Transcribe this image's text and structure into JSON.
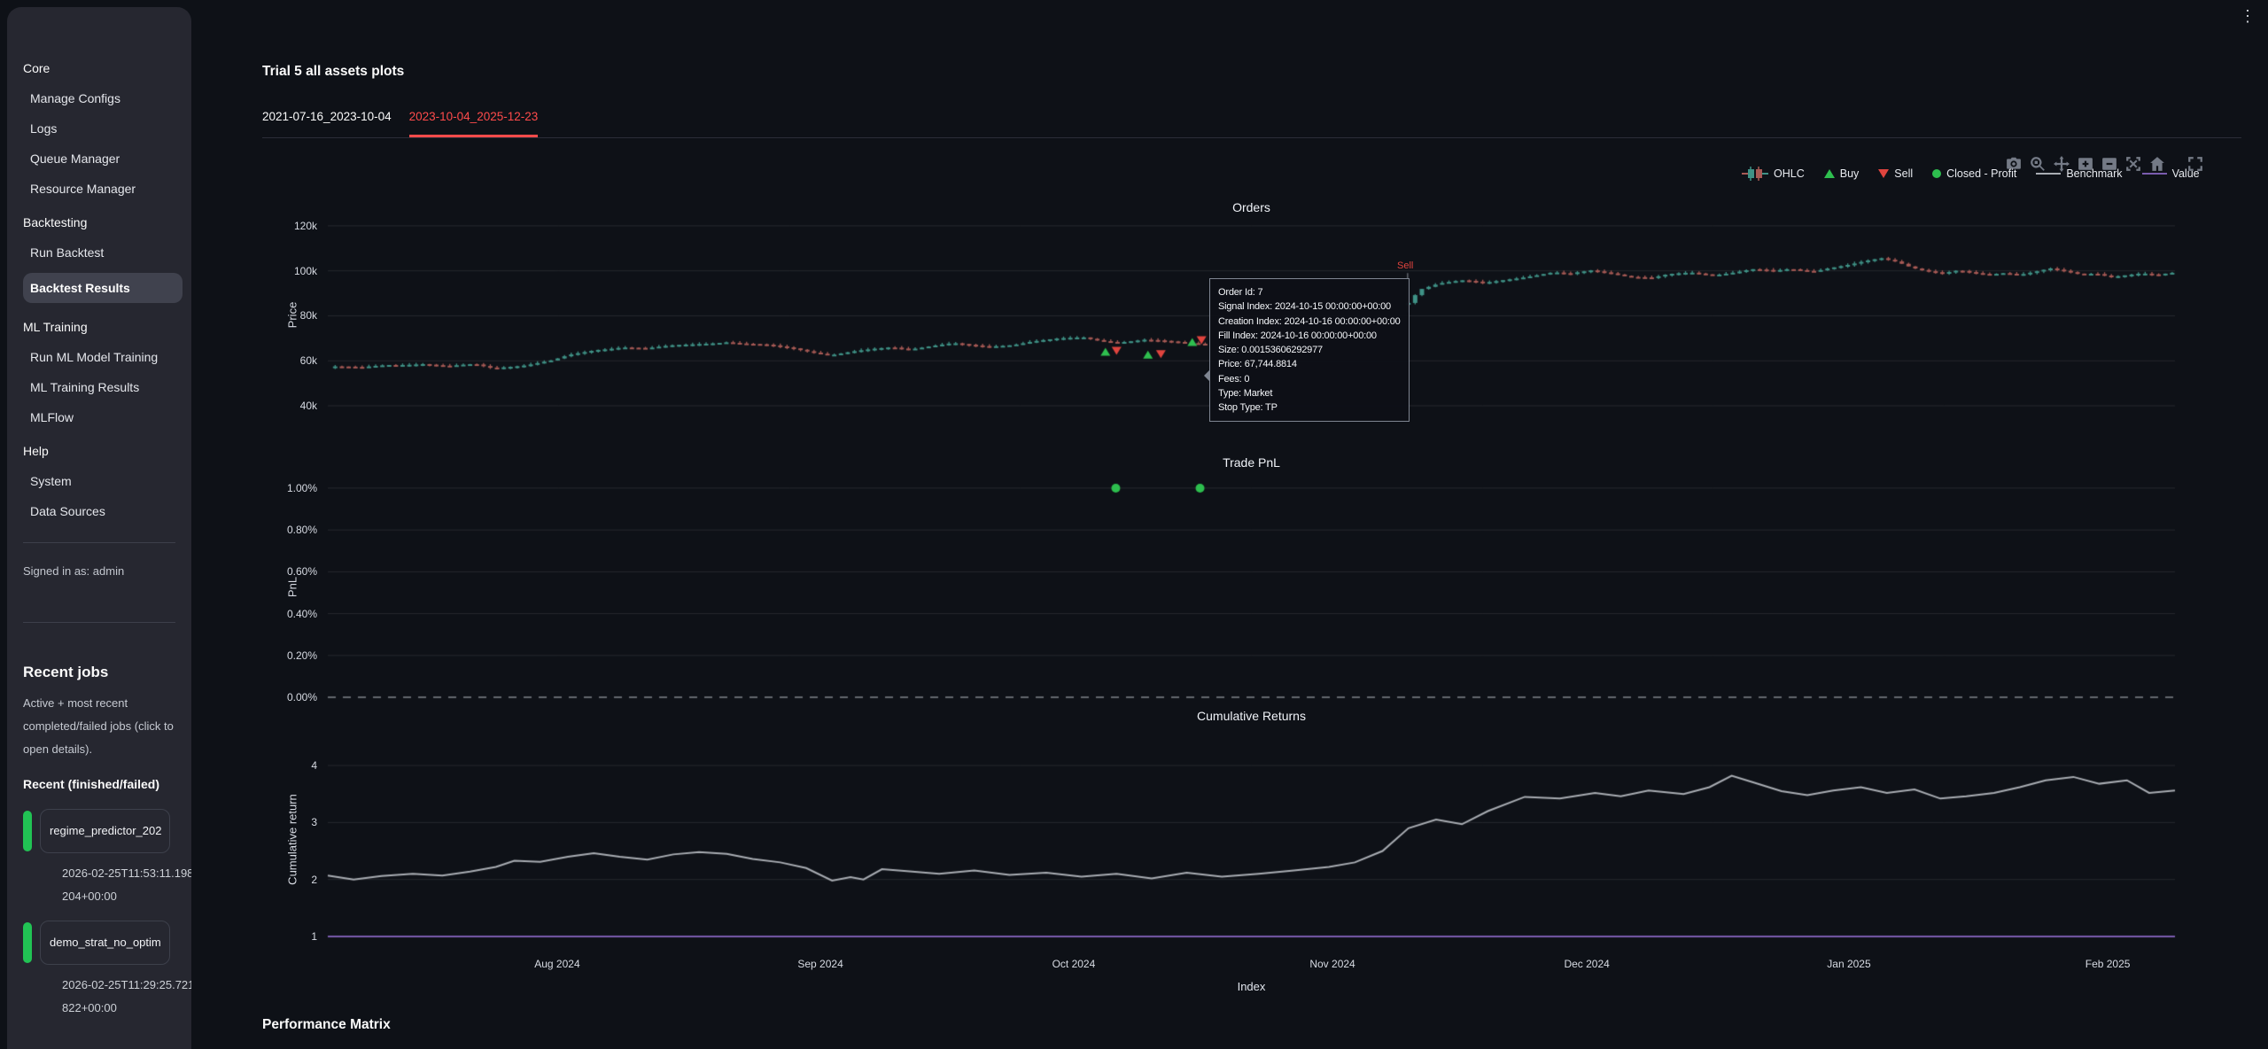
{
  "window": {
    "kebab": "⋮"
  },
  "sidebar": {
    "sections": [
      {
        "label": "Core",
        "items": [
          "Manage Configs",
          "Logs",
          "Queue Manager",
          "Resource Manager"
        ]
      },
      {
        "label": "Backtesting",
        "items": [
          "Run Backtest",
          "Backtest Results"
        ]
      },
      {
        "label": "ML Training",
        "items": [
          "Run ML Model Training",
          "ML Training Results",
          "MLFlow"
        ]
      },
      {
        "label": "Help",
        "items": [
          "System",
          "Data Sources"
        ]
      }
    ],
    "active_item": "Backtest Results",
    "signed_in": "Signed in as: admin",
    "recent_jobs": {
      "title": "Recent jobs",
      "description": "Active + most recent completed/failed jobs (click to open details).",
      "subtitle": "Recent (finished/failed)",
      "jobs": [
        {
          "name": "regime_predictor_202",
          "timestamp": "2026-02-25T11:53:11.198204+00:00",
          "status_color": "#21c354"
        },
        {
          "name": "demo_strat_no_optim",
          "timestamp": "2026-02-25T11:29:25.721822+00:00",
          "status_color": "#21c354"
        }
      ]
    }
  },
  "main": {
    "title": "Trial 5 all assets plots",
    "tabs": [
      {
        "label": "2021-07-16_2023-10-04",
        "active": false
      },
      {
        "label": "2023-10-04_2025-12-23",
        "active": true
      }
    ],
    "section_heading": "Performance Matrix"
  },
  "legend": {
    "items": [
      {
        "label": "OHLC"
      },
      {
        "label": "Buy"
      },
      {
        "label": "Sell"
      },
      {
        "label": "Closed - Profit"
      },
      {
        "label": "Benchmark"
      },
      {
        "label": "Value"
      }
    ]
  },
  "modebar_icons": [
    "camera",
    "zoom",
    "pan",
    "zoom-in",
    "zoom-out",
    "autoscale",
    "reset-axes",
    "fullscreen"
  ],
  "tooltip": {
    "lines": [
      "Order Id: 7",
      "Signal Index: 2024-10-15 00:00:00+00:00",
      "Creation Index: 2024-10-16 00:00:00+00:00",
      "Fill Index: 2024-10-16 00:00:00+00:00",
      "Size: 0.00153606292977",
      "Price: 67,744.8814",
      "Fees: 0",
      "Type: Market",
      "Stop Type: TP"
    ]
  },
  "colors": {
    "accent_red": "#ff4b4b",
    "candle_up": "#3f9286",
    "candle_down": "#a85a55",
    "buy": "#2fbf4f",
    "sell": "#e0443e",
    "profit_dot": "#2dbe4e",
    "benchmark": "#a9adb3",
    "value": "#7a5cae",
    "job_green": "#21c354"
  },
  "chart_data": [
    {
      "type": "candlestick",
      "title": "Orders",
      "ylabel": "Price",
      "yticks": [
        {
          "v": 40,
          "label": "40k"
        },
        {
          "v": 60,
          "label": "60k"
        },
        {
          "v": 80,
          "label": "80k"
        },
        {
          "v": 100,
          "label": "100k"
        },
        {
          "v": 120,
          "label": "120k"
        }
      ],
      "ylim_k": [
        34.5,
        124.7
      ],
      "segments": [
        {
          "fx": [
            0.004,
            0.475
          ],
          "n": 130,
          "closes": [
            [
              0,
              57.5
            ],
            [
              0.03,
              56.8
            ],
            [
              0.06,
              58.2
            ],
            [
              0.1,
              58.8
            ],
            [
              0.13,
              57.4
            ],
            [
              0.16,
              58.4
            ],
            [
              0.18,
              57
            ],
            [
              0.22,
              58.2
            ],
            [
              0.25,
              60
            ],
            [
              0.27,
              62.5
            ],
            [
              0.3,
              65
            ],
            [
              0.33,
              66.2
            ],
            [
              0.36,
              65.4
            ],
            [
              0.39,
              66.8
            ],
            [
              0.42,
              67.8
            ],
            [
              0.45,
              68.4
            ],
            [
              0.47,
              67.4
            ],
            [
              0.5,
              66.8
            ],
            [
              0.53,
              65.6
            ],
            [
              0.55,
              64
            ],
            [
              0.57,
              62.6
            ],
            [
              0.59,
              63.6
            ],
            [
              0.62,
              65.2
            ],
            [
              0.64,
              66.2
            ],
            [
              0.66,
              65.4
            ],
            [
              0.68,
              66.4
            ],
            [
              0.71,
              67.6
            ],
            [
              0.73,
              66.8
            ],
            [
              0.75,
              66.4
            ],
            [
              0.78,
              67.4
            ],
            [
              0.8,
              68.6
            ],
            [
              0.83,
              69.6
            ],
            [
              0.86,
              70.4
            ],
            [
              0.88,
              69.2
            ],
            [
              0.9,
              68.4
            ],
            [
              0.93,
              69.2
            ],
            [
              0.96,
              68.4
            ],
            [
              1,
              67.7
            ]
          ]
        },
        {
          "fx": [
            0.585,
            0.9985
          ],
          "n": 114,
          "closes": [
            [
              0,
              86
            ],
            [
              0.015,
              92
            ],
            [
              0.04,
              94.5
            ],
            [
              0.07,
              95.5
            ],
            [
              0.1,
              94.6
            ],
            [
              0.13,
              96.4
            ],
            [
              0.16,
              97.8
            ],
            [
              0.19,
              99.2
            ],
            [
              0.21,
              98.4
            ],
            [
              0.24,
              100.2
            ],
            [
              0.27,
              99
            ],
            [
              0.29,
              97.6
            ],
            [
              0.32,
              96.8
            ],
            [
              0.34,
              98.2
            ],
            [
              0.37,
              99.2
            ],
            [
              0.4,
              98.4
            ],
            [
              0.43,
              99.6
            ],
            [
              0.45,
              100.6
            ],
            [
              0.48,
              99.8
            ],
            [
              0.5,
              100.8
            ],
            [
              0.53,
              100
            ],
            [
              0.55,
              101.4
            ],
            [
              0.58,
              102.8
            ],
            [
              0.6,
              104.2
            ],
            [
              0.62,
              105.4
            ],
            [
              0.64,
              104
            ],
            [
              0.66,
              101.6
            ],
            [
              0.68,
              100.2
            ],
            [
              0.7,
              99
            ],
            [
              0.72,
              100
            ],
            [
              0.74,
              98.8
            ],
            [
              0.76,
              98.2
            ],
            [
              0.78,
              99.2
            ],
            [
              0.8,
              98.6
            ],
            [
              0.82,
              99.8
            ],
            [
              0.84,
              101
            ],
            [
              0.86,
              99.6
            ],
            [
              0.88,
              98.2
            ],
            [
              0.9,
              98.8
            ],
            [
              0.92,
              97.6
            ],
            [
              0.94,
              98.4
            ],
            [
              0.96,
              99
            ],
            [
              0.98,
              98
            ],
            [
              1,
              98.8
            ]
          ]
        }
      ],
      "buys": [
        [
          0.421,
          63.8
        ],
        [
          0.444,
          62.6
        ],
        [
          0.468,
          68.2
        ]
      ],
      "sells": [
        [
          0.427,
          64.6
        ],
        [
          0.451,
          63.2
        ],
        [
          0.473,
          69.4
        ]
      ],
      "annotation": {
        "text": "Sell",
        "color": "#e0443e",
        "line": {
          "fx": 0.5846,
          "v0": 99,
          "v1": 81.7
        }
      }
    },
    {
      "type": "scatter",
      "title": "Trade PnL",
      "ylabel": "PnL",
      "yticks": [
        {
          "v": 0,
          "label": "0.00%"
        },
        {
          "v": 0.2,
          "label": "0.20%"
        },
        {
          "v": 0.4,
          "label": "0.40%"
        },
        {
          "v": 0.6,
          "label": "0.60%"
        },
        {
          "v": 0.8,
          "label": "0.80%"
        },
        {
          "v": 1,
          "label": "1.00%"
        }
      ],
      "zero_dashed_at": 0,
      "points": [
        [
          0.4266,
          1.0
        ],
        [
          0.4722,
          1.0
        ]
      ],
      "point_color": "#2dbe4e"
    },
    {
      "type": "line",
      "title": "Cumulative Returns",
      "ylabel": "Cumulative return",
      "xlabel": "Index",
      "yticks": [
        {
          "v": 1,
          "label": "1"
        },
        {
          "v": 2,
          "label": "2"
        },
        {
          "v": 3,
          "label": "3"
        },
        {
          "v": 4,
          "label": "4"
        }
      ],
      "x_ticks": [
        {
          "f": 0.1242,
          "label": "Aug 2024"
        },
        {
          "f": 0.2667,
          "label": "Sep 2024"
        },
        {
          "f": 0.4038,
          "label": "Oct 2024"
        },
        {
          "f": 0.5439,
          "label": "Nov 2024"
        },
        {
          "f": 0.6816,
          "label": "Dec 2024"
        },
        {
          "f": 0.8235,
          "label": "Jan 2025"
        },
        {
          "f": 0.9636,
          "label": "Feb 2025"
        }
      ],
      "baseline_dashed_at": 1,
      "series": [
        {
          "name": "Benchmark",
          "color": "#a9adb3",
          "points": [
            [
              0,
              2.07
            ],
            [
              0.014,
              2
            ],
            [
              0.029,
              2.06
            ],
            [
              0.046,
              2.1
            ],
            [
              0.062,
              2.07
            ],
            [
              0.077,
              2.14
            ],
            [
              0.091,
              2.22
            ],
            [
              0.101,
              2.33
            ],
            [
              0.115,
              2.31
            ],
            [
              0.13,
              2.4
            ],
            [
              0.144,
              2.46
            ],
            [
              0.158,
              2.4
            ],
            [
              0.173,
              2.35
            ],
            [
              0.187,
              2.44
            ],
            [
              0.201,
              2.48
            ],
            [
              0.216,
              2.45
            ],
            [
              0.23,
              2.36
            ],
            [
              0.245,
              2.3
            ],
            [
              0.259,
              2.2
            ],
            [
              0.273,
              1.98
            ],
            [
              0.283,
              2.04
            ],
            [
              0.29,
              2
            ],
            [
              0.3,
              2.18
            ],
            [
              0.312,
              2.15
            ],
            [
              0.331,
              2.1
            ],
            [
              0.35,
              2.16
            ],
            [
              0.369,
              2.08
            ],
            [
              0.389,
              2.12
            ],
            [
              0.408,
              2.05
            ],
            [
              0.427,
              2.1
            ],
            [
              0.446,
              2.02
            ],
            [
              0.465,
              2.12
            ],
            [
              0.484,
              2.05
            ],
            [
              0.504,
              2.1
            ],
            [
              0.523,
              2.16
            ],
            [
              0.542,
              2.22
            ],
            [
              0.556,
              2.3
            ],
            [
              0.571,
              2.5
            ],
            [
              0.585,
              2.9
            ],
            [
              0.6,
              3.05
            ],
            [
              0.614,
              2.97
            ],
            [
              0.628,
              3.2
            ],
            [
              0.648,
              3.45
            ],
            [
              0.667,
              3.42
            ],
            [
              0.686,
              3.52
            ],
            [
              0.7,
              3.46
            ],
            [
              0.715,
              3.56
            ],
            [
              0.734,
              3.5
            ],
            [
              0.748,
              3.62
            ],
            [
              0.76,
              3.82
            ],
            [
              0.772,
              3.7
            ],
            [
              0.787,
              3.55
            ],
            [
              0.801,
              3.48
            ],
            [
              0.815,
              3.56
            ],
            [
              0.83,
              3.62
            ],
            [
              0.844,
              3.52
            ],
            [
              0.859,
              3.58
            ],
            [
              0.873,
              3.42
            ],
            [
              0.887,
              3.46
            ],
            [
              0.902,
              3.52
            ],
            [
              0.916,
              3.62
            ],
            [
              0.93,
              3.74
            ],
            [
              0.945,
              3.8
            ],
            [
              0.959,
              3.68
            ],
            [
              0.974,
              3.74
            ],
            [
              0.986,
              3.52
            ],
            [
              1,
              3.56
            ]
          ]
        },
        {
          "name": "Value",
          "color": "#7a5cae",
          "points": [
            [
              0,
              1
            ],
            [
              1,
              1
            ]
          ]
        }
      ]
    }
  ]
}
